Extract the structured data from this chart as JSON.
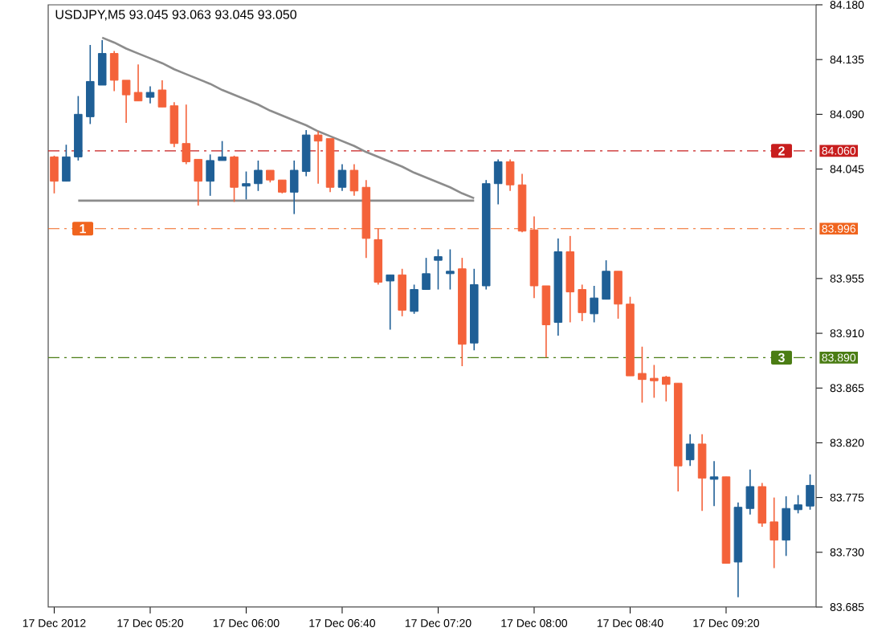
{
  "chart_data": {
    "type": "candlestick",
    "title": "USDJPY,M5  93.045 93.063 93.045 93.050",
    "categories": [
      "17 Dec 2012",
      null,
      null,
      null,
      null,
      null,
      null,
      null,
      "17 Dec 05:20",
      null,
      null,
      null,
      null,
      null,
      null,
      null,
      "17 Dec 06:00",
      null,
      null,
      null,
      null,
      null,
      null,
      null,
      "17 Dec 06:40",
      null,
      null,
      null,
      null,
      null,
      null,
      null,
      "17 Dec 07:20",
      null,
      null,
      null,
      null,
      null,
      null,
      null,
      "17 Dec 08:00",
      null,
      null,
      null,
      null,
      null,
      null,
      null,
      "17 Dec 08:40",
      null,
      null,
      null,
      null,
      null,
      null,
      null,
      "17 Dec 09:20",
      null,
      null,
      null,
      null,
      null,
      null,
      null
    ],
    "ohlc": [
      [
        84.055,
        84.056,
        84.025,
        84.035
      ],
      [
        84.035,
        84.065,
        84.035,
        84.055
      ],
      [
        84.055,
        84.105,
        84.052,
        84.09
      ],
      [
        84.088,
        84.147,
        84.082,
        84.117
      ],
      [
        84.114,
        84.151,
        84.114,
        84.14
      ],
      [
        84.14,
        84.142,
        84.109,
        84.118
      ],
      [
        84.118,
        84.118,
        84.083,
        84.106
      ],
      [
        84.108,
        84.131,
        84.101,
        84.101
      ],
      [
        84.104,
        84.113,
        84.099,
        84.108
      ],
      [
        84.11,
        84.118,
        84.096,
        84.096
      ],
      [
        84.097,
        84.1,
        84.063,
        84.066
      ],
      [
        84.066,
        84.098,
        84.049,
        84.051
      ],
      [
        84.053,
        84.053,
        84.015,
        84.035
      ],
      [
        84.035,
        84.057,
        84.023,
        84.052
      ],
      [
        84.052,
        84.068,
        84.052,
        84.055
      ],
      [
        84.055,
        84.056,
        84.018,
        84.03
      ],
      [
        84.031,
        84.043,
        84.02,
        84.033
      ],
      [
        84.033,
        84.052,
        84.027,
        84.044
      ],
      [
        84.044,
        84.044,
        84.034,
        84.036
      ],
      [
        84.036,
        84.036,
        84.025,
        84.026
      ],
      [
        84.026,
        84.052,
        84.008,
        84.044
      ],
      [
        84.043,
        84.077,
        84.039,
        84.073
      ],
      [
        84.073,
        84.076,
        84.033,
        84.068
      ],
      [
        84.07,
        84.07,
        84.026,
        84.03
      ],
      [
        84.03,
        84.049,
        84.027,
        84.044
      ],
      [
        84.044,
        84.049,
        84.023,
        84.027
      ],
      [
        84.03,
        84.036,
        83.972,
        83.988
      ],
      [
        83.987,
        83.996,
        83.95,
        83.952
      ],
      [
        83.953,
        83.958,
        83.913,
        83.958
      ],
      [
        83.958,
        83.963,
        83.924,
        83.929
      ],
      [
        83.928,
        83.95,
        83.926,
        83.946
      ],
      [
        83.946,
        83.972,
        83.946,
        83.959
      ],
      [
        83.97,
        83.979,
        83.946,
        83.973
      ],
      [
        83.959,
        83.979,
        83.946,
        83.961
      ],
      [
        83.963,
        83.972,
        83.883,
        83.901
      ],
      [
        83.902,
        83.963,
        83.896,
        83.95
      ],
      [
        83.949,
        84.036,
        83.946,
        84.033
      ],
      [
        84.033,
        84.053,
        84.016,
        84.051
      ],
      [
        84.051,
        84.053,
        84.027,
        84.032
      ],
      [
        84.032,
        84.041,
        83.993,
        83.994
      ],
      [
        83.995,
        84.006,
        83.939,
        83.949
      ],
      [
        83.949,
        83.949,
        83.89,
        83.917
      ],
      [
        83.919,
        83.988,
        83.908,
        83.977
      ],
      [
        83.977,
        83.99,
        83.919,
        83.944
      ],
      [
        83.946,
        83.95,
        83.92,
        83.927
      ],
      [
        83.926,
        83.949,
        83.919,
        83.939
      ],
      [
        83.938,
        83.97,
        83.938,
        83.961
      ],
      [
        83.961,
        83.961,
        83.922,
        83.934
      ],
      [
        83.934,
        83.94,
        83.875,
        83.875
      ],
      [
        83.877,
        83.899,
        83.853,
        83.872
      ],
      [
        83.873,
        83.884,
        83.857,
        83.871
      ],
      [
        83.874,
        83.875,
        83.854,
        83.868
      ],
      [
        83.869,
        83.869,
        83.78,
        83.801
      ],
      [
        83.806,
        83.827,
        83.801,
        83.819
      ],
      [
        83.819,
        83.827,
        83.764,
        83.791
      ],
      [
        83.79,
        83.805,
        83.768,
        83.792
      ],
      [
        83.792,
        83.792,
        83.721,
        83.721
      ],
      [
        83.722,
        83.771,
        83.693,
        83.767
      ],
      [
        83.766,
        83.798,
        83.761,
        83.784
      ],
      [
        83.784,
        83.787,
        83.751,
        83.754
      ],
      [
        83.755,
        83.775,
        83.717,
        83.74
      ],
      [
        83.74,
        83.776,
        83.727,
        83.766
      ],
      [
        83.765,
        83.777,
        83.762,
        83.769
      ],
      [
        83.768,
        83.794,
        83.765,
        83.785
      ]
    ],
    "colors": [
      "#f4623a",
      "#1f5f96",
      "#1f5f96",
      "#1f5f96",
      "#1f5f96",
      "#f4623a",
      "#f4623a",
      "#f4623a",
      "#1f5f96",
      "#f4623a",
      "#f4623a",
      "#f4623a",
      "#f4623a",
      "#1f5f96",
      "#1f5f96",
      "#f4623a",
      "#1f5f96",
      "#1f5f96",
      "#f4623a",
      "#f4623a",
      "#1f5f96",
      "#1f5f96",
      "#f4623a",
      "#f4623a",
      "#1f5f96",
      "#f4623a",
      "#f4623a",
      "#f4623a",
      "#1f5f96",
      "#f4623a",
      "#1f5f96",
      "#1f5f96",
      "#1f5f96",
      "#1f5f96",
      "#f4623a",
      "#1f5f96",
      "#1f5f96",
      "#1f5f96",
      "#f4623a",
      "#f4623a",
      "#f4623a",
      "#f4623a",
      "#1f5f96",
      "#f4623a",
      "#f4623a",
      "#1f5f96",
      "#1f5f96",
      "#f4623a",
      "#f4623a",
      "#f4623a",
      "#f4623a",
      "#f4623a",
      "#f4623a",
      "#1f5f96",
      "#f4623a",
      "#1f5f96",
      "#f4623a",
      "#1f5f96",
      "#1f5f96",
      "#f4623a",
      "#f4623a",
      "#1f5f96",
      "#1f5f96",
      "#1f5f96"
    ],
    "series": [
      {
        "type": "line",
        "color": "#8c8c8c",
        "values": [
          null,
          null,
          null,
          null,
          84.153,
          84.149,
          84.144,
          84.14,
          84.136,
          84.132,
          84.127,
          84.123,
          84.119,
          84.115,
          84.11,
          84.106,
          84.102,
          84.098,
          84.093,
          84.089,
          84.085,
          84.081,
          84.076,
          84.072,
          84.068,
          84.064,
          84.059,
          84.055,
          84.051,
          84.047,
          84.042,
          84.038,
          84.034,
          84.03,
          84.025,
          84.021,
          null,
          null,
          null,
          null,
          null,
          null,
          null,
          null,
          null,
          null,
          null,
          null,
          null,
          null,
          null,
          null,
          null,
          null,
          null,
          null,
          null,
          null,
          null,
          null,
          null,
          null,
          null,
          null
        ]
      },
      {
        "type": "line",
        "color": "#8c8c8c",
        "values": [
          null,
          null,
          84.019,
          84.019,
          84.019,
          84.019,
          84.019,
          84.019,
          84.019,
          84.019,
          84.019,
          84.019,
          84.019,
          84.019,
          84.019,
          84.019,
          84.019,
          84.019,
          84.019,
          84.019,
          84.019,
          84.019,
          84.019,
          84.019,
          84.019,
          84.019,
          84.019,
          84.019,
          84.019,
          84.019,
          84.019,
          84.019,
          84.019,
          84.019,
          84.019,
          84.019,
          null,
          null,
          null,
          null,
          null,
          null,
          null,
          null,
          null,
          null,
          null,
          null,
          null,
          null,
          null,
          null,
          null,
          null,
          null,
          null,
          null,
          null,
          null,
          null,
          null,
          null,
          null,
          null
        ]
      }
    ],
    "ref_lines": [
      {
        "axis": "y",
        "value": 84.06,
        "label": "84.060",
        "color": "#c81e1e",
        "line_style": "dashed"
      },
      {
        "axis": "y",
        "value": 83.996,
        "label": "83.996",
        "color": "#f0641e",
        "line_style": "dashed"
      },
      {
        "axis": "y",
        "value": 83.89,
        "label": "83.890",
        "color": "#4b7d14",
        "line_style": "dashed"
      }
    ],
    "annotations": [
      {
        "text": "2",
        "y": 84.06
      },
      {
        "text": "1",
        "y": 83.996
      },
      {
        "text": "3",
        "y": 83.89
      }
    ],
    "ylim": [
      83.685,
      84.18
    ],
    "yticks": [
      {
        "value": 83.685,
        "label": "83.685"
      },
      {
        "value": 83.73,
        "label": "83.730"
      },
      {
        "value": 83.775,
        "label": "83.775"
      },
      {
        "value": 83.82,
        "label": "83.820"
      },
      {
        "value": 83.865,
        "label": "83.865"
      },
      {
        "value": 83.91,
        "label": "83.910"
      },
      {
        "value": 83.955,
        "label": "83.955"
      },
      {
        "value": 84.045,
        "label": "84.045"
      },
      {
        "value": 84.09,
        "label": "84.090"
      },
      {
        "value": 84.135,
        "label": "84.135"
      },
      {
        "value": 84.18,
        "label": "84.180"
      }
    ]
  }
}
